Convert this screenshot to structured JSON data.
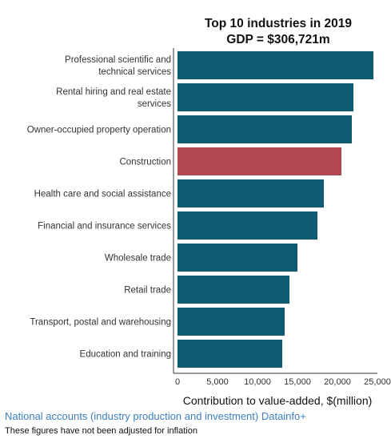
{
  "chart_data": {
    "type": "bar",
    "orientation": "horizontal",
    "title_lines": [
      "Top 10 industries in 2019",
      "GDP = $306,721m"
    ],
    "categories": [
      [
        "Professional scientific and",
        "technical services"
      ],
      [
        "Rental hiring and real estate",
        "services"
      ],
      [
        "Owner-occupied property operation"
      ],
      [
        "Construction"
      ],
      [
        "Health care and social assistance"
      ],
      [
        "Financial and insurance services"
      ],
      [
        "Wholesale trade"
      ],
      [
        "Retail trade"
      ],
      [
        "Transport, postal and warehousing"
      ],
      [
        "Education and training"
      ]
    ],
    "values": [
      24500,
      22000,
      21800,
      20500,
      18300,
      17500,
      15000,
      14000,
      13400,
      13100
    ],
    "highlight_index": 3,
    "colors": {
      "default": "#0e5b74",
      "highlight": "#b0494f"
    },
    "xlim": [
      0,
      25000
    ],
    "xticks": [
      0,
      5000,
      10000,
      15000,
      20000,
      25000
    ],
    "xtick_labels": [
      "0",
      "5,000",
      "10,000",
      "15,000",
      "20,000",
      "25,000"
    ],
    "xlabel": "Contribution to value-added, $(million)",
    "ylabel": "",
    "grid": false,
    "legend": "none"
  },
  "source_link": "National accounts (industry production and investment) Datainfo+",
  "footnote": "These figures have not been adjusted for inflation"
}
